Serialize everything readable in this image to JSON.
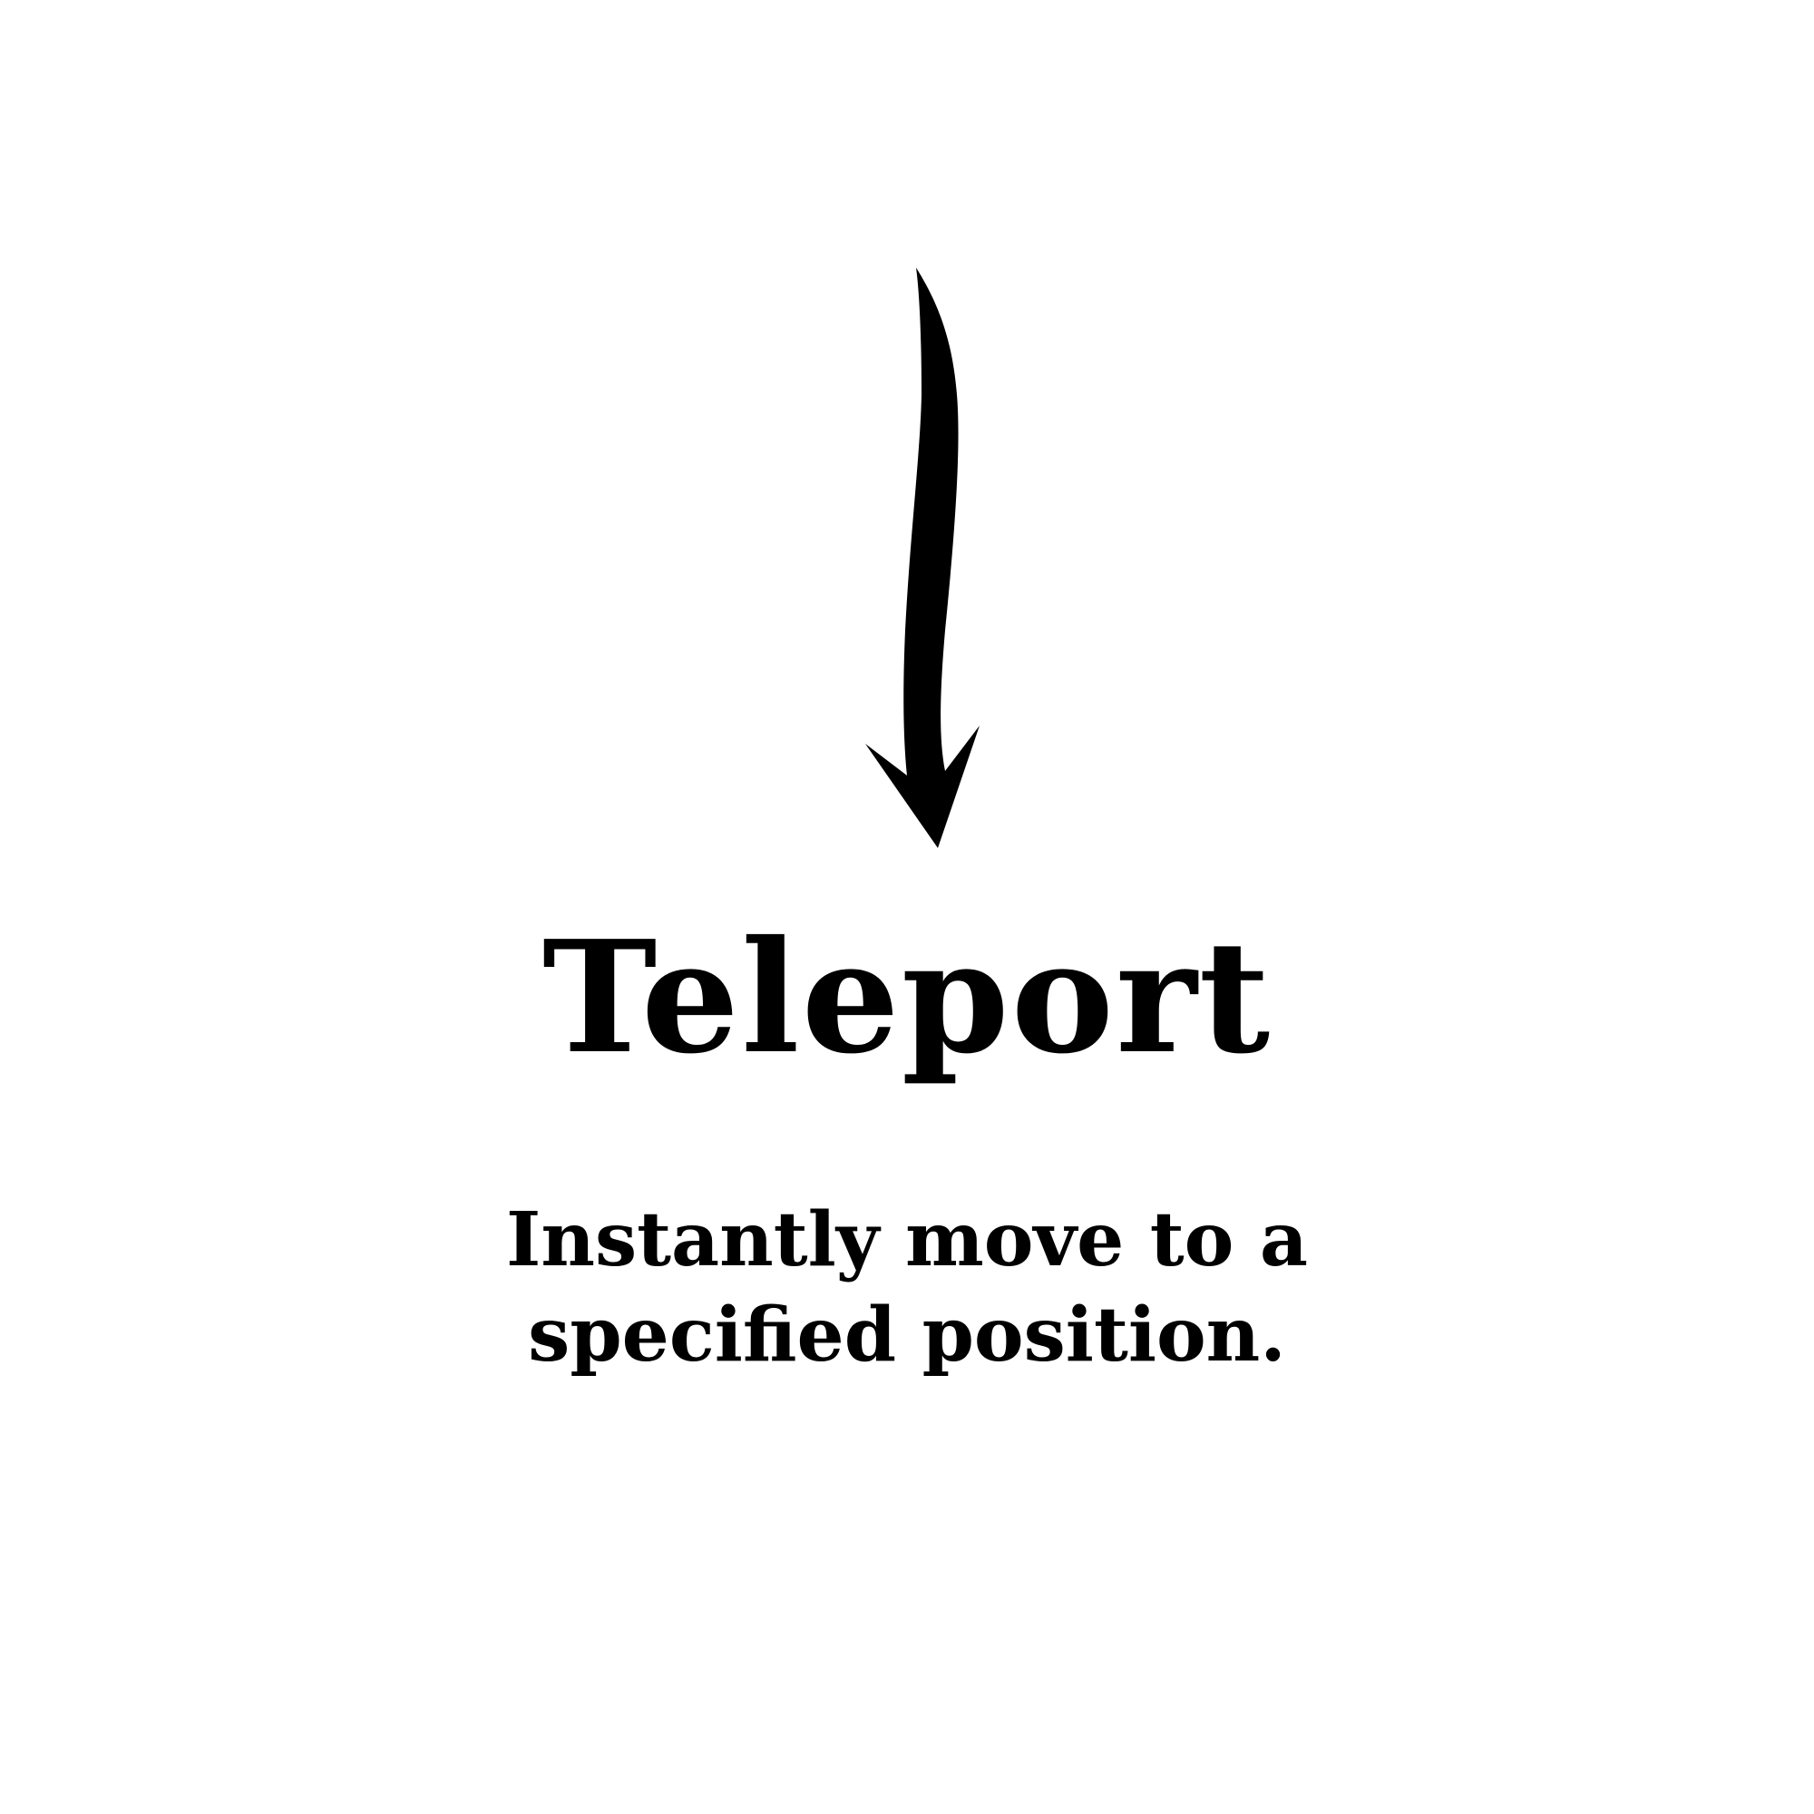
{
  "card": {
    "title": "Teleport",
    "description": "Instantly move to a specified position.",
    "icon": "down-arrow-icon",
    "ink_color": "#000000",
    "background_color": "#ffffff"
  }
}
